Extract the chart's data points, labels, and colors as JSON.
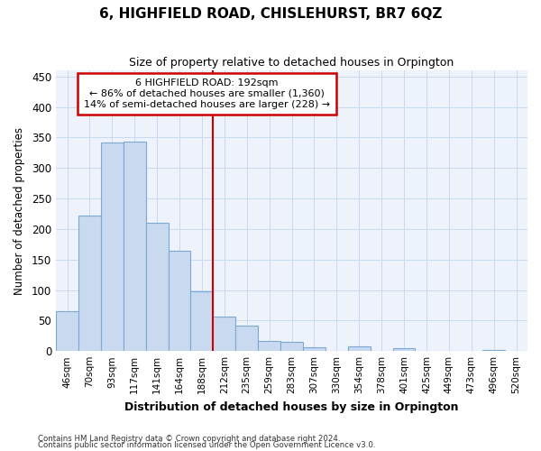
{
  "title": "6, HIGHFIELD ROAD, CHISLEHURST, BR7 6QZ",
  "subtitle": "Size of property relative to detached houses in Orpington",
  "xlabel": "Distribution of detached houses by size in Orpington",
  "ylabel": "Number of detached properties",
  "categories": [
    "46sqm",
    "70sqm",
    "93sqm",
    "117sqm",
    "141sqm",
    "164sqm",
    "188sqm",
    "212sqm",
    "235sqm",
    "259sqm",
    "283sqm",
    "307sqm",
    "330sqm",
    "354sqm",
    "378sqm",
    "401sqm",
    "425sqm",
    "449sqm",
    "473sqm",
    "496sqm",
    "520sqm"
  ],
  "values": [
    65,
    222,
    342,
    344,
    210,
    165,
    98,
    57,
    41,
    17,
    15,
    6,
    0,
    7,
    0,
    4,
    0,
    0,
    0,
    2,
    0
  ],
  "bar_color": "#c8d9f0",
  "bar_edge_color": "#7aaad4",
  "vline_index": 6,
  "vline_color": "#cc0000",
  "annotation_text": "6 HIGHFIELD ROAD: 192sqm\n← 86% of detached houses are smaller (1,360)\n14% of semi-detached houses are larger (228) →",
  "annotation_box_color": "#ffffff",
  "annotation_box_edge": "#cc0000",
  "grid_color": "#c8daf0",
  "background_color": "#eef2fa",
  "footer_line1": "Contains HM Land Registry data © Crown copyright and database right 2024.",
  "footer_line2": "Contains public sector information licensed under the Open Government Licence v3.0.",
  "ylim": [
    0,
    460
  ],
  "yticks": [
    0,
    50,
    100,
    150,
    200,
    250,
    300,
    350,
    400,
    450
  ]
}
